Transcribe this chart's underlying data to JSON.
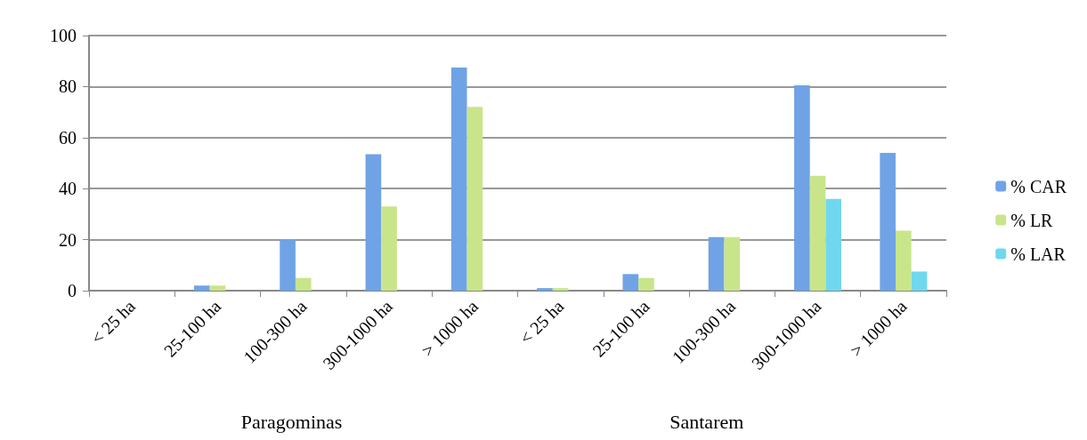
{
  "chart_data": {
    "type": "bar",
    "categories": [
      "< 25 ha",
      "25-100 ha",
      "100-300 ha",
      "300-1000 ha",
      "> 1000 ha",
      "< 25 ha",
      "25-100 ha",
      "100-300 ha",
      "300-1000 ha",
      "> 1000 ha"
    ],
    "series": [
      {
        "name": "% CAR",
        "color": "#6fa3e6",
        "values": [
          0,
          2,
          20,
          53.5,
          87.5,
          1,
          6.5,
          21,
          80.5,
          54
        ]
      },
      {
        "name": "% LR",
        "color": "#c8e58a",
        "values": [
          0,
          2,
          5,
          33,
          72,
          1,
          5,
          21,
          45,
          23.5
        ]
      },
      {
        "name": "% LAR",
        "color": "#6fd8ee",
        "values": [
          0,
          0,
          0,
          0,
          0,
          0,
          0,
          0,
          36,
          7.5
        ]
      }
    ],
    "annotations": [
      "Paragominas",
      "Santarem"
    ],
    "ylim": [
      0,
      100
    ],
    "yticks": [
      0,
      20,
      40,
      60,
      80,
      100
    ],
    "grid": "y",
    "legend": "right"
  }
}
